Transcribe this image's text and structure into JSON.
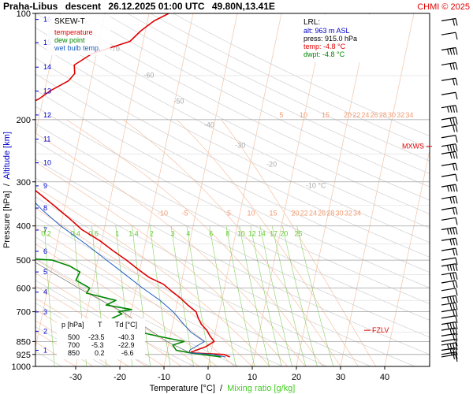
{
  "header": {
    "station": "Praha-Libus",
    "mode": "descent",
    "datetime": "26.12.2025 01:00 UTC",
    "coords": "49.80N,13.41E",
    "copyright": "CHMI © 2025"
  },
  "legend": {
    "title": "SKEW-T",
    "items": [
      {
        "label": "temperature",
        "color": "#e00000"
      },
      {
        "label": "dew point",
        "color": "#008800"
      },
      {
        "label": "wet bulb temp.",
        "color": "#2060c0"
      }
    ]
  },
  "lrl": {
    "title": "LRL:",
    "alt": "alt: 963 m ASL",
    "press": "press: 915.0 hPa",
    "temp": "temp: -4.8 °C",
    "dwpt": "dwpt: -4.8 °C"
  },
  "table": {
    "headers": [
      "p [hPa]",
      "T",
      "Td [°C]"
    ],
    "rows": [
      [
        "500",
        "-23.5",
        "-40.3"
      ],
      [
        "700",
        "-5.3",
        "-22.9"
      ],
      [
        "850",
        "0.2",
        "-6.6"
      ]
    ]
  },
  "level_labels": {
    "mxws": "MXWS",
    "fzlv": "FZLV"
  },
  "chart_data": {
    "type": "line",
    "title": "Praha-Libus descent 26.12.2025 01:00 UTC 49.80N,13.41E",
    "xlabel": "Temperature [°C]",
    "xlabel_sep": "/",
    "xlabel2": "Mixing ratio [g/kg]",
    "ylabel": "Pressure [hPa]",
    "ylabel_sep": "/",
    "ylabel2": "Altitude [km]",
    "ylog": true,
    "xlim": [
      -35,
      50
    ],
    "ylim": [
      1000,
      100
    ],
    "pressure_ticks": [
      100,
      200,
      300,
      400,
      500,
      600,
      700,
      850,
      925,
      1000
    ],
    "temp_ticks": [
      -30,
      -20,
      -10,
      0,
      10,
      20,
      30,
      40
    ],
    "altitude_ticks": [
      {
        "km": 1,
        "p": 900
      },
      {
        "km": 2,
        "p": 795
      },
      {
        "km": 3,
        "p": 701
      },
      {
        "km": 4,
        "p": 616
      },
      {
        "km": 5,
        "p": 540
      },
      {
        "km": 6,
        "p": 472
      },
      {
        "km": 7,
        "p": 411
      },
      {
        "km": 8,
        "p": 356
      },
      {
        "km": 9,
        "p": 308
      },
      {
        "km": 10,
        "p": 265
      },
      {
        "km": 11,
        "p": 227
      },
      {
        "km": 12,
        "p": 194
      },
      {
        "km": 13,
        "p": 166
      },
      {
        "km": 14,
        "p": 142
      },
      {
        "km": 15,
        "p": 121
      },
      {
        "km": 16,
        "p": 104
      }
    ],
    "isotherm_labels_upper": [
      {
        "t": 5,
        "text": "5"
      },
      {
        "t": 10,
        "text": "10"
      },
      {
        "t": 15,
        "text": "15"
      },
      {
        "t": 20,
        "text": "20"
      },
      {
        "t": 22,
        "text": "22"
      },
      {
        "t": 24,
        "text": "24"
      },
      {
        "t": 26,
        "text": "26"
      },
      {
        "t": 28,
        "text": "28"
      },
      {
        "t": 30,
        "text": "30"
      },
      {
        "t": 32,
        "text": "32"
      },
      {
        "t": 34,
        "text": "34"
      }
    ],
    "isotherm_labels_lower": [
      {
        "t": -10,
        "text": "-10"
      },
      {
        "t": -5,
        "text": "-5"
      },
      {
        "t": 5,
        "text": "5"
      },
      {
        "t": 10,
        "text": "10"
      },
      {
        "t": 15,
        "text": "15"
      },
      {
        "t": 20,
        "text": "20"
      },
      {
        "t": 22,
        "text": "22"
      },
      {
        "t": 24,
        "text": "24"
      },
      {
        "t": 26,
        "text": "26"
      },
      {
        "t": 28,
        "text": "28"
      },
      {
        "t": 30,
        "text": "30"
      },
      {
        "t": 32,
        "text": "32"
      },
      {
        "t": 34,
        "text": "34"
      }
    ],
    "mixing_ratio_labels": [
      "0.2",
      "0.4",
      "0.6",
      "1",
      "1.4",
      "2",
      "3",
      "4",
      "6",
      "8",
      "10",
      "12",
      "14",
      "17",
      "20",
      "25"
    ],
    "mixing_ratios": [
      0.2,
      0.4,
      0.6,
      1,
      1.4,
      2,
      3,
      4,
      6,
      8,
      10,
      12,
      14,
      17,
      20,
      25
    ],
    "dry_adiabat_labels": [
      {
        "text": "-80 °C",
        "p": 108,
        "t": -45
      },
      {
        "text": "-70",
        "p": 128,
        "t": -36
      },
      {
        "text": "-60",
        "p": 152,
        "t": -27
      },
      {
        "text": "-50",
        "p": 180,
        "t": -19
      },
      {
        "text": "-40",
        "p": 210,
        "t": -11
      },
      {
        "text": "-30",
        "p": 240,
        "t": -3
      },
      {
        "text": "-20",
        "p": 272,
        "t": 5
      },
      {
        "text": "-10 °C",
        "p": 312,
        "t": 16
      }
    ],
    "series": [
      {
        "name": "temperature",
        "color": "#e00000",
        "points": [
          [
            940,
            4.5
          ],
          [
            925,
            3.0
          ],
          [
            915,
            -4.8
          ],
          [
            900,
            -3.5
          ],
          [
            880,
            -1.5
          ],
          [
            850,
            0.2
          ],
          [
            820,
            -1.0
          ],
          [
            790,
            -2.0
          ],
          [
            760,
            -3.5
          ],
          [
            730,
            -4.5
          ],
          [
            700,
            -5.3
          ],
          [
            670,
            -7.5
          ],
          [
            640,
            -9.5
          ],
          [
            610,
            -12.0
          ],
          [
            585,
            -14.0
          ],
          [
            560,
            -17.5
          ],
          [
            530,
            -20.5
          ],
          [
            500,
            -23.5
          ],
          [
            470,
            -27.0
          ],
          [
            440,
            -30.5
          ],
          [
            410,
            -35.0
          ],
          [
            380,
            -38.5
          ],
          [
            350,
            -42.5
          ],
          [
            320,
            -47.0
          ],
          [
            300,
            -50.0
          ],
          [
            280,
            -53.0
          ],
          [
            260,
            -55.5
          ],
          [
            240,
            -57.5
          ],
          [
            220,
            -58.5
          ],
          [
            205,
            -59.0
          ],
          [
            200,
            -60.0
          ],
          [
            195,
            -59.0
          ],
          [
            185,
            -55.0
          ],
          [
            175,
            -51.0
          ],
          [
            165,
            -48.5
          ],
          [
            155,
            -45.0
          ],
          [
            148,
            -44.0
          ],
          [
            140,
            -44.5
          ],
          [
            130,
            -41.0
          ],
          [
            125,
            -37.0
          ],
          [
            120,
            -33.0
          ],
          [
            112,
            -31.0
          ],
          [
            105,
            -28.5
          ],
          [
            100,
            -25.5
          ]
        ]
      },
      {
        "name": "dew point",
        "color": "#008800",
        "points": [
          [
            940,
            2.5
          ],
          [
            925,
            -2.0
          ],
          [
            915,
            -4.8
          ],
          [
            900,
            -8.0
          ],
          [
            870,
            -9.0
          ],
          [
            850,
            -6.6
          ],
          [
            820,
            -13.0
          ],
          [
            790,
            -19.0
          ],
          [
            760,
            -17.0
          ],
          [
            730,
            -24.0
          ],
          [
            710,
            -22.0
          ],
          [
            700,
            -22.9
          ],
          [
            690,
            -20.0
          ],
          [
            670,
            -26.0
          ],
          [
            650,
            -24.0
          ],
          [
            620,
            -31.0
          ],
          [
            600,
            -30.5
          ],
          [
            570,
            -34.0
          ],
          [
            540,
            -33.5
          ],
          [
            520,
            -36.0
          ],
          [
            500,
            -40.3
          ],
          [
            490,
            -52.0
          ],
          [
            470,
            -48.0
          ],
          [
            440,
            -51.0
          ],
          [
            410,
            -56.0
          ],
          [
            390,
            -59.0
          ],
          [
            370,
            -58.5
          ],
          [
            350,
            -62.0
          ],
          [
            330,
            -61.5
          ],
          [
            300,
            -64.0
          ],
          [
            270,
            -66.5
          ],
          [
            250,
            -67.0
          ],
          [
            230,
            -70.0
          ],
          [
            210,
            -71.5
          ],
          [
            195,
            -72.0
          ],
          [
            180,
            -76.0
          ],
          [
            165,
            -78.0
          ],
          [
            150,
            -80.0
          ],
          [
            140,
            -81.0
          ],
          [
            125,
            -83.0
          ],
          [
            110,
            -85.0
          ],
          [
            100,
            -86.0
          ]
        ]
      },
      {
        "name": "wet bulb temp.",
        "color": "#2060c0",
        "points": [
          [
            940,
            3.5
          ],
          [
            925,
            0.5
          ],
          [
            915,
            -4.8
          ],
          [
            900,
            -5.0
          ],
          [
            850,
            -2.0
          ],
          [
            800,
            -5.5
          ],
          [
            750,
            -8.0
          ],
          [
            700,
            -10.5
          ],
          [
            650,
            -14.0
          ],
          [
            600,
            -18.5
          ],
          [
            550,
            -23.0
          ],
          [
            500,
            -28.0
          ],
          [
            450,
            -33.5
          ],
          [
            400,
            -40.0
          ],
          [
            360,
            -45.0
          ],
          [
            330,
            -48.5
          ],
          [
            300,
            -51.0
          ]
        ]
      }
    ],
    "parcel_path": [
      [
        915,
        -4.8
      ],
      [
        850,
        -10.5
      ],
      [
        700,
        -22.0
      ],
      [
        600,
        -33.0
      ],
      [
        500,
        -45.0
      ],
      [
        400,
        -60.0
      ],
      [
        330,
        -71.0
      ]
    ],
    "levels": [
      {
        "name": "MXWS",
        "p": 238
      },
      {
        "name": "FZLV",
        "p": 790
      }
    ],
    "wind_levels_hpa": [
      940,
      925,
      900,
      870,
      850,
      820,
      790,
      760,
      730,
      700,
      670,
      640,
      610,
      580,
      550,
      520,
      500,
      470,
      440,
      410,
      385,
      360,
      335,
      310,
      290,
      270,
      250,
      238,
      225,
      210,
      200,
      185,
      170,
      155,
      140,
      127,
      115,
      105
    ]
  }
}
